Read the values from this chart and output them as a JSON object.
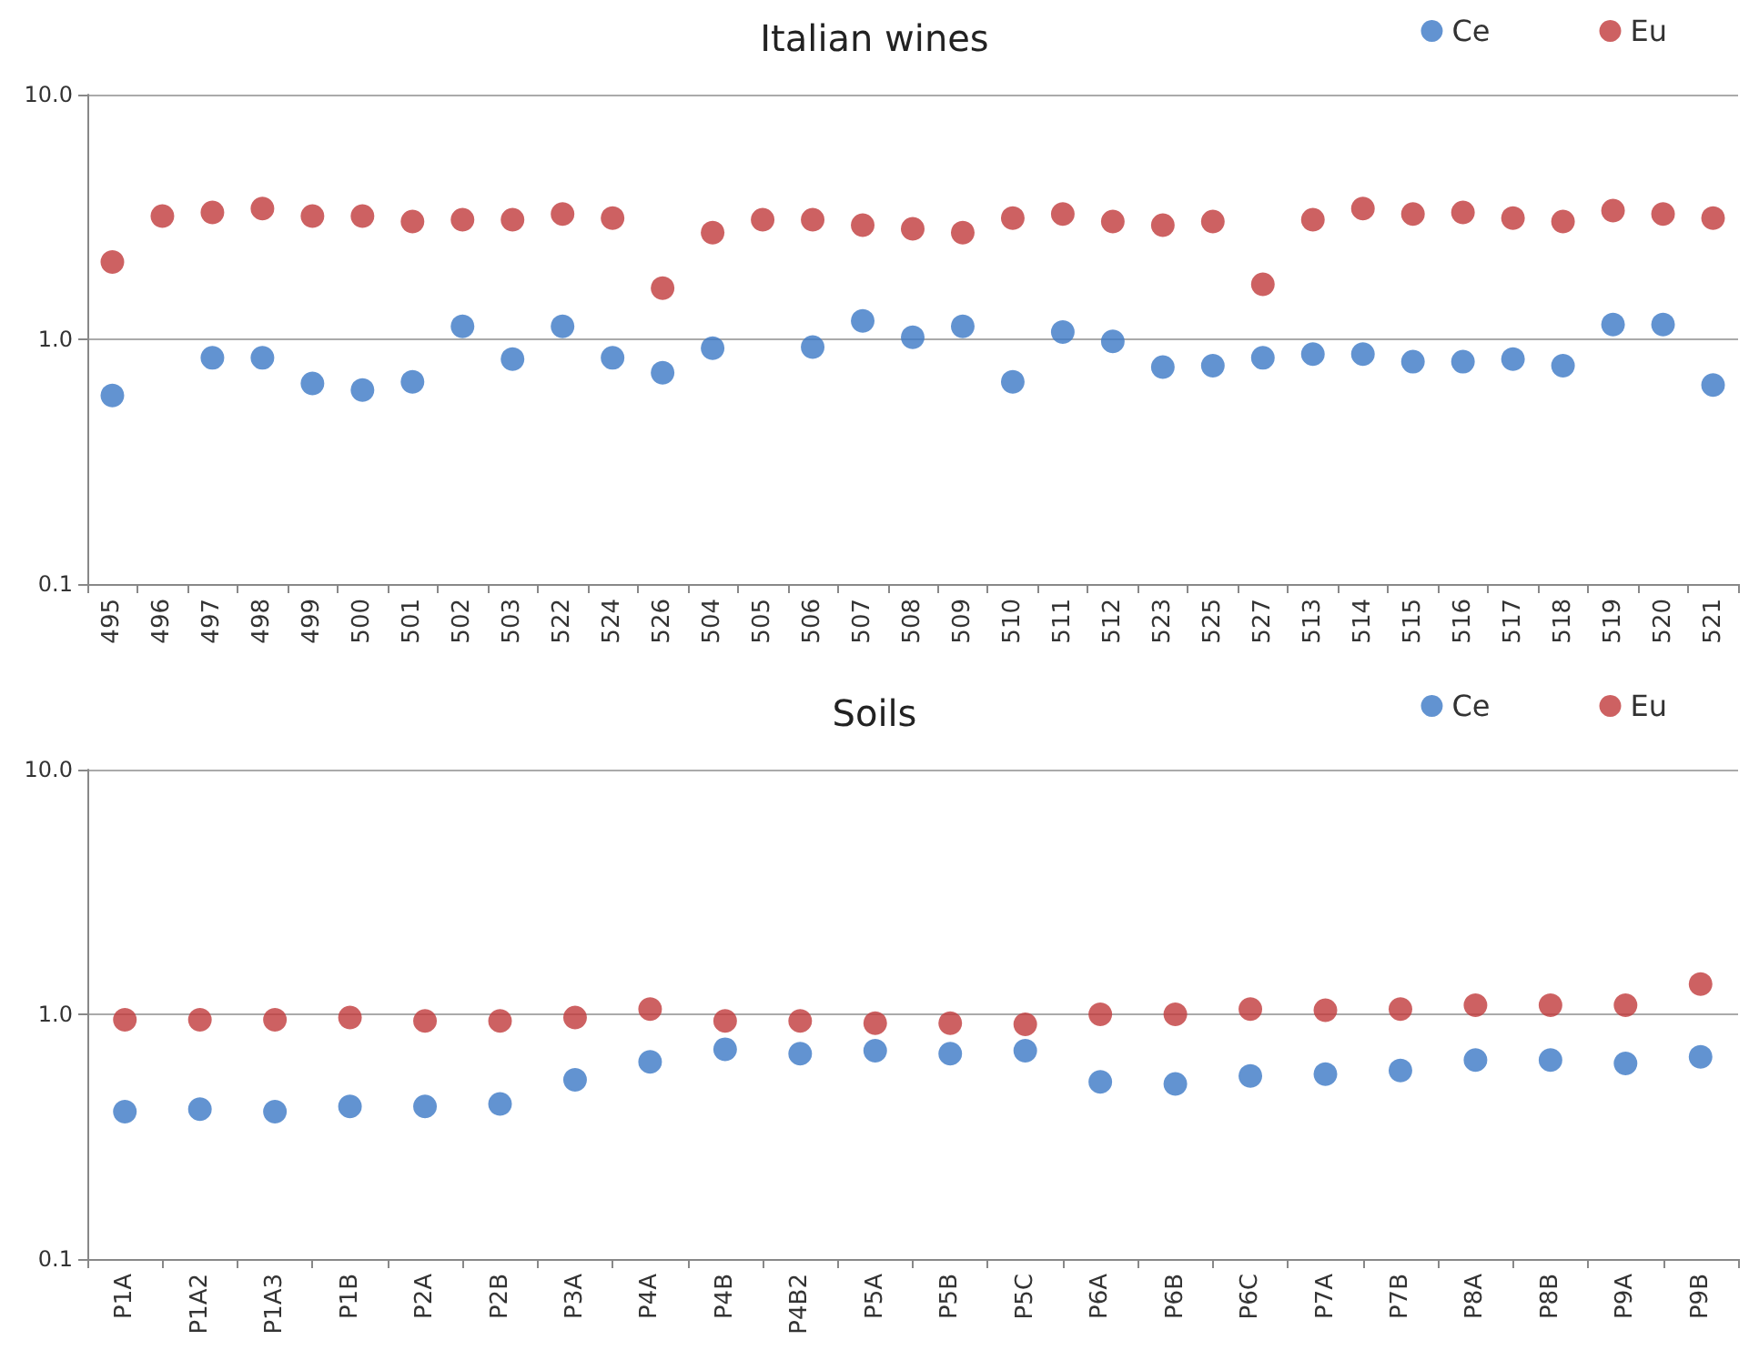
{
  "chart_data": [
    {
      "type": "scatter",
      "title": "Italian wines",
      "categories": [
        "495",
        "496",
        "497",
        "498",
        "499",
        "500",
        "501",
        "502",
        "503",
        "522",
        "524",
        "526",
        "504",
        "505",
        "506",
        "507",
        "508",
        "509",
        "510",
        "511",
        "512",
        "523",
        "525",
        "527",
        "513",
        "514",
        "515",
        "516",
        "517",
        "518",
        "519",
        "520",
        "521"
      ],
      "series": [
        {
          "name": "Ce",
          "color": "#3b78c6",
          "values": [
            0.59,
            null,
            0.84,
            0.84,
            0.66,
            0.62,
            0.67,
            1.13,
            0.83,
            1.13,
            0.84,
            0.73,
            0.92,
            null,
            0.93,
            1.19,
            1.02,
            1.13,
            0.67,
            1.07,
            0.98,
            0.77,
            0.78,
            0.84,
            0.87,
            0.87,
            0.81,
            0.81,
            0.83,
            0.78,
            1.15,
            1.15,
            0.65
          ]
        },
        {
          "name": "Eu",
          "color": "#c0393b",
          "values": [
            2.07,
            3.19,
            3.3,
            3.42,
            3.19,
            3.19,
            3.03,
            3.08,
            3.08,
            3.25,
            3.13,
            1.62,
            2.73,
            3.08,
            3.08,
            2.93,
            2.83,
            2.73,
            3.13,
            3.25,
            3.03,
            2.93,
            3.03,
            1.68,
            3.08,
            3.42,
            3.25,
            3.3,
            3.13,
            3.03,
            3.36,
            3.25,
            3.13
          ]
        }
      ],
      "ylim": [
        0.1,
        10
      ],
      "yticks": [
        {
          "value": 0.1,
          "label": "0.1"
        },
        {
          "value": 1,
          "label": "1.0"
        },
        {
          "value": 10,
          "label": "10.0"
        }
      ],
      "log": "y",
      "grid": "y",
      "legend": "top right",
      "marker": "circle"
    },
    {
      "type": "scatter",
      "title": "Soils",
      "categories": [
        "P1A",
        "P1A2",
        "P1A3",
        "P1B",
        "P2A",
        "P2B",
        "P3A",
        "P4A",
        "P4B",
        "P4B2",
        "P5A",
        "P5B",
        "P5C",
        "P6A",
        "P6B",
        "P6C",
        "P7A",
        "P7B",
        "P8A",
        "P8B",
        "P9A",
        "P9B"
      ],
      "series": [
        {
          "name": "Ce",
          "color": "#3b78c6",
          "values": [
            0.4,
            0.41,
            0.4,
            0.42,
            0.42,
            0.43,
            0.54,
            0.64,
            0.72,
            0.69,
            0.71,
            0.69,
            0.71,
            0.53,
            0.52,
            0.56,
            0.57,
            0.59,
            0.65,
            0.65,
            0.63,
            0.67
          ]
        },
        {
          "name": "Eu",
          "color": "#c0393b",
          "values": [
            0.95,
            0.95,
            0.95,
            0.97,
            0.94,
            0.94,
            0.97,
            1.05,
            0.94,
            0.94,
            0.92,
            0.92,
            0.91,
            1.0,
            1.0,
            1.05,
            1.04,
            1.05,
            1.09,
            1.09,
            1.09,
            1.33
          ]
        }
      ],
      "ylim": [
        0.1,
        10
      ],
      "yticks": [
        {
          "value": 0.1,
          "label": "0.1"
        },
        {
          "value": 1,
          "label": "1.0"
        },
        {
          "value": 10,
          "label": "10.0"
        }
      ],
      "log": "y",
      "grid": "y",
      "legend": "top right",
      "marker": "circle"
    }
  ]
}
